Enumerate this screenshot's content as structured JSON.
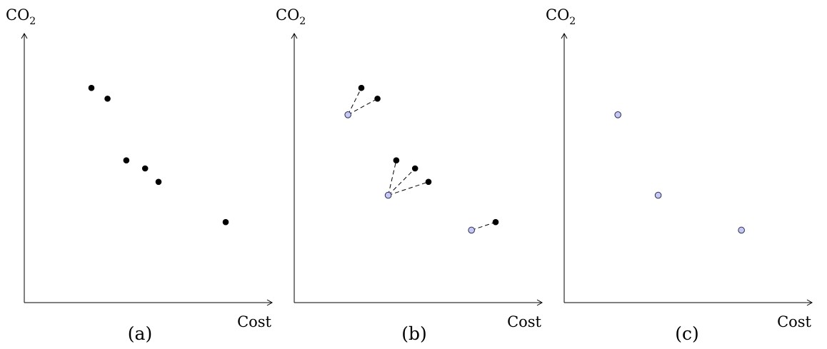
{
  "panels": [
    {
      "id": "a",
      "caption": "(a)",
      "x_label": "Cost",
      "y_label": "CO",
      "y_label_sub": "2",
      "points": [
        {
          "cost": 2.5,
          "co2": 8.0,
          "kind": "original"
        },
        {
          "cost": 3.1,
          "co2": 7.6,
          "kind": "original"
        },
        {
          "cost": 3.8,
          "co2": 5.3,
          "kind": "original"
        },
        {
          "cost": 4.5,
          "co2": 5.0,
          "kind": "original"
        },
        {
          "cost": 5.0,
          "co2": 4.5,
          "kind": "original"
        },
        {
          "cost": 7.5,
          "co2": 3.0,
          "kind": "original"
        }
      ],
      "links": []
    },
    {
      "id": "b",
      "caption": "(b)",
      "x_label": "Cost",
      "y_label": "CO",
      "y_label_sub": "2",
      "points": [
        {
          "cost": 2.5,
          "co2": 8.0,
          "kind": "original"
        },
        {
          "cost": 3.1,
          "co2": 7.6,
          "kind": "original"
        },
        {
          "cost": 3.8,
          "co2": 5.3,
          "kind": "original"
        },
        {
          "cost": 4.5,
          "co2": 5.0,
          "kind": "original"
        },
        {
          "cost": 5.0,
          "co2": 4.5,
          "kind": "original"
        },
        {
          "cost": 7.5,
          "co2": 3.0,
          "kind": "original"
        },
        {
          "cost": 2.0,
          "co2": 7.0,
          "kind": "representative"
        },
        {
          "cost": 3.5,
          "co2": 4.0,
          "kind": "representative"
        },
        {
          "cost": 6.6,
          "co2": 2.7,
          "kind": "representative"
        }
      ],
      "links": [
        {
          "from": 6,
          "to": 0
        },
        {
          "from": 6,
          "to": 1
        },
        {
          "from": 7,
          "to": 2
        },
        {
          "from": 7,
          "to": 3
        },
        {
          "from": 7,
          "to": 4
        },
        {
          "from": 8,
          "to": 5
        }
      ]
    },
    {
      "id": "c",
      "caption": "(c)",
      "x_label": "Cost",
      "y_label": "CO",
      "y_label_sub": "2",
      "points": [
        {
          "cost": 2.0,
          "co2": 7.0,
          "kind": "representative"
        },
        {
          "cost": 3.5,
          "co2": 4.0,
          "kind": "representative"
        },
        {
          "cost": 6.6,
          "co2": 2.7,
          "kind": "representative"
        }
      ],
      "links": []
    }
  ]
}
